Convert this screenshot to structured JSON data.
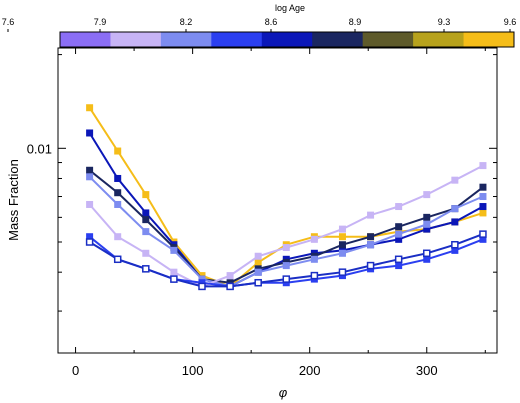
{
  "chart_data": {
    "type": "line",
    "xlabel": "φ",
    "ylabel": "Mass Fraction",
    "xlim": [
      -15,
      360
    ],
    "ylim_log": [
      0.0022,
      0.021
    ],
    "y_scale": "log",
    "x_ticks": [
      0,
      100,
      200,
      300
    ],
    "x_tick_labels": [
      "0",
      "100",
      "200",
      "300"
    ],
    "y_major_tick": 0.01,
    "y_major_label": "0.01",
    "y_minor_ticks": [
      0.003,
      0.004,
      0.005,
      0.006,
      0.007,
      0.008,
      0.009,
      0.02
    ],
    "colorbar": {
      "title": "log Age",
      "tick_labels": [
        "7.6",
        "7.9",
        "8.2",
        "8.6",
        "8.9",
        "9.3",
        "9.6"
      ],
      "segment_colors": [
        "#8b6ef5",
        "#c7b4f5",
        "#7d8cf0",
        "#2b3ff0",
        "#0b17b8",
        "#1a2660",
        "#5e5a2a",
        "#b7a21c",
        "#f5bd19"
      ]
    },
    "x": [
      12,
      36,
      60,
      84,
      108,
      132,
      156,
      180,
      204,
      228,
      252,
      276,
      300,
      324,
      348
    ],
    "series": [
      {
        "color": "#f5bd19",
        "values": [
          0.0135,
          0.0098,
          0.0071,
          0.005,
          0.0039,
          0.0036,
          0.0043,
          0.0049,
          0.0052,
          0.0052,
          0.0052,
          0.0054,
          0.0055,
          0.0058,
          0.0062
        ]
      },
      {
        "color": "#0b17b8",
        "values": [
          0.0112,
          0.008,
          0.0062,
          0.0049,
          0.0038,
          0.0036,
          0.004,
          0.0044,
          0.0046,
          0.0047,
          0.0049,
          0.0051,
          0.0055,
          0.0058,
          0.0065
        ]
      },
      {
        "color": "#1a2660",
        "values": [
          0.0085,
          0.0072,
          0.0059,
          0.0048,
          0.0038,
          0.0037,
          0.0041,
          0.0043,
          0.0045,
          0.0049,
          0.0052,
          0.0056,
          0.006,
          0.0064,
          0.0075
        ]
      },
      {
        "color": "#7d8cf0",
        "values": [
          0.0081,
          0.0066,
          0.0054,
          0.0047,
          0.0038,
          0.0036,
          0.004,
          0.0042,
          0.0044,
          0.0046,
          0.0049,
          0.0053,
          0.0057,
          0.0064,
          0.007
        ]
      },
      {
        "color": "#c7b4f5",
        "values": [
          0.0066,
          0.0052,
          0.0046,
          0.004,
          0.0036,
          0.0039,
          0.0045,
          0.0048,
          0.0051,
          0.0055,
          0.0061,
          0.0065,
          0.0071,
          0.0079,
          0.0088
        ]
      },
      {
        "color": "#2b3ff0",
        "values": [
          0.0052,
          0.0044,
          0.0041,
          0.0038,
          0.0037,
          0.0036,
          0.0037,
          0.0037,
          0.0038,
          0.0039,
          0.0041,
          0.0042,
          0.0044,
          0.0047,
          0.0051
        ]
      },
      {
        "color": "#1a2ec4",
        "values": [
          0.005,
          0.0044,
          0.0041,
          0.0038,
          0.0036,
          0.0036,
          0.0037,
          0.0038,
          0.0039,
          0.004,
          0.0042,
          0.0044,
          0.0046,
          0.0049,
          0.0053
        ]
      }
    ]
  }
}
